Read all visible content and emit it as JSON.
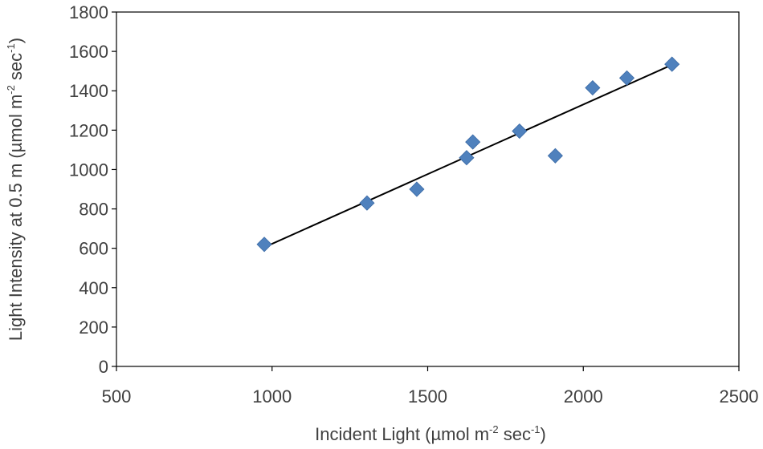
{
  "chart_data": {
    "type": "scatter",
    "xlabel": {
      "main": "Incident Light (µmol m",
      "sup1": "-2",
      "mid": " sec",
      "sup2": "-1",
      "end": ")"
    },
    "ylabel": {
      "main": "Light Intensity at 0.5 m (µmol m",
      "sup1": "-2",
      "mid": " sec",
      "sup2": "-1",
      "end": ")"
    },
    "xlim": [
      500,
      2500
    ],
    "ylim": [
      0,
      1800
    ],
    "x_ticks": [
      500,
      1000,
      1500,
      2000,
      2500
    ],
    "y_ticks": [
      0,
      200,
      400,
      600,
      800,
      1000,
      1200,
      1400,
      1600,
      1800
    ],
    "grid": false,
    "marker": "diamond",
    "marker_color": "#4f81bd",
    "trendline_color": "#000000",
    "points": [
      {
        "x": 975,
        "y": 620
      },
      {
        "x": 1305,
        "y": 830
      },
      {
        "x": 1465,
        "y": 900
      },
      {
        "x": 1625,
        "y": 1060
      },
      {
        "x": 1645,
        "y": 1140
      },
      {
        "x": 1795,
        "y": 1195
      },
      {
        "x": 1910,
        "y": 1070
      },
      {
        "x": 2030,
        "y": 1415
      },
      {
        "x": 2140,
        "y": 1465
      },
      {
        "x": 2285,
        "y": 1535
      }
    ],
    "trendline": {
      "x_start": 975,
      "y_start": 605,
      "x_end": 2285,
      "y_end": 1532
    }
  }
}
